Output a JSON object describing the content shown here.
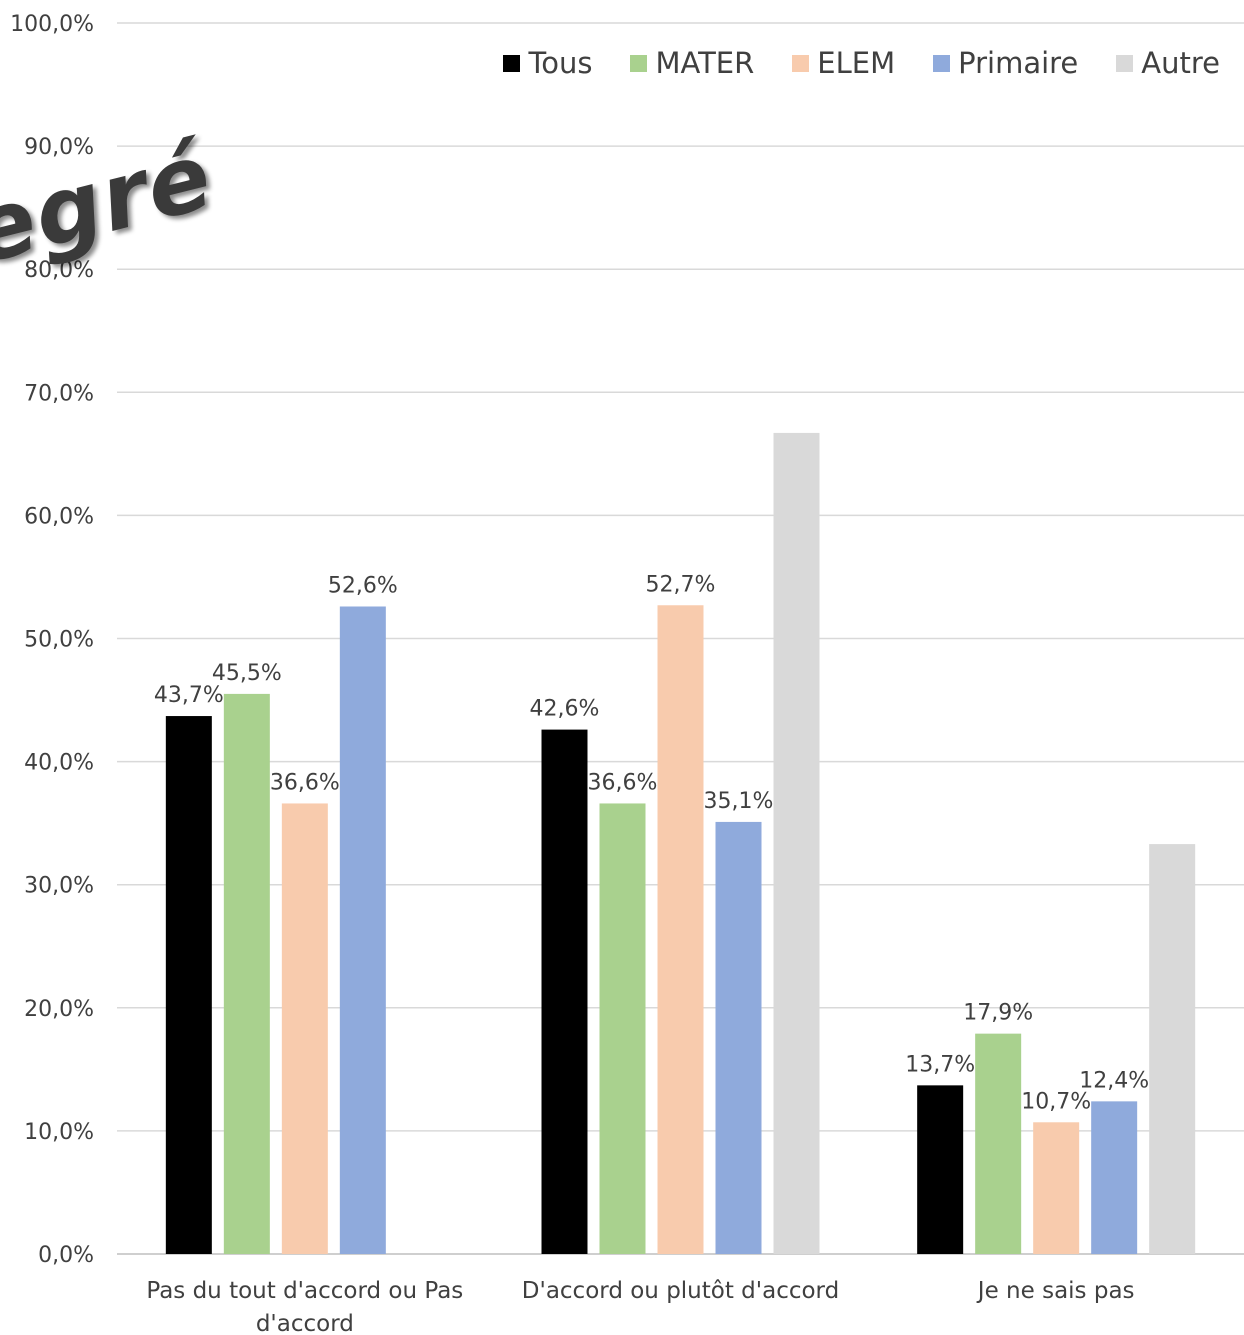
{
  "watermark": "egré",
  "chart_data": {
    "type": "bar",
    "categories": [
      "Pas du tout d'accord ou Pas d'accord",
      "D'accord ou plutôt d'accord",
      "Je ne sais pas"
    ],
    "category_lines": [
      [
        "Pas du tout d'accord ou Pas",
        "d'accord"
      ],
      [
        "D'accord ou plutôt d'accord"
      ],
      [
        "Je ne sais pas"
      ]
    ],
    "series": [
      {
        "name": "Tous",
        "color": "#000000",
        "values": [
          43.7,
          42.6,
          13.7
        ],
        "labels": [
          "43,7%",
          "42,6%",
          "13,7%"
        ]
      },
      {
        "name": "MATER",
        "color": "#A9D18E",
        "values": [
          45.5,
          36.6,
          17.9
        ],
        "labels": [
          "45,5%",
          "36,6%",
          "17,9%"
        ]
      },
      {
        "name": "ELEM",
        "color": "#F8CBAD",
        "values": [
          36.6,
          52.7,
          10.7
        ],
        "labels": [
          "36,6%",
          "52,7%",
          "10,7%"
        ]
      },
      {
        "name": "Primaire",
        "color": "#8FAADC",
        "values": [
          52.6,
          35.1,
          12.4
        ],
        "labels": [
          "52,6%",
          "35,1%",
          "12,4%"
        ]
      },
      {
        "name": "Autre",
        "color": "#D9D9D9",
        "values": [
          0,
          66.7,
          33.3
        ],
        "labels": [
          "",
          "",
          ""
        ]
      }
    ],
    "y_ticks": [
      "0,0%",
      "10,0%",
      "20,0%",
      "30,0%",
      "40,0%",
      "50,0%",
      "60,0%",
      "70,0%",
      "80,0%",
      "90,0%",
      "100,0%"
    ],
    "ylim": [
      0,
      100
    ],
    "grid": true,
    "legend_position": "top-right",
    "colors": {
      "gridline": "#D9D9D9",
      "axis": "#BFBFBF",
      "text": "#404040"
    }
  }
}
